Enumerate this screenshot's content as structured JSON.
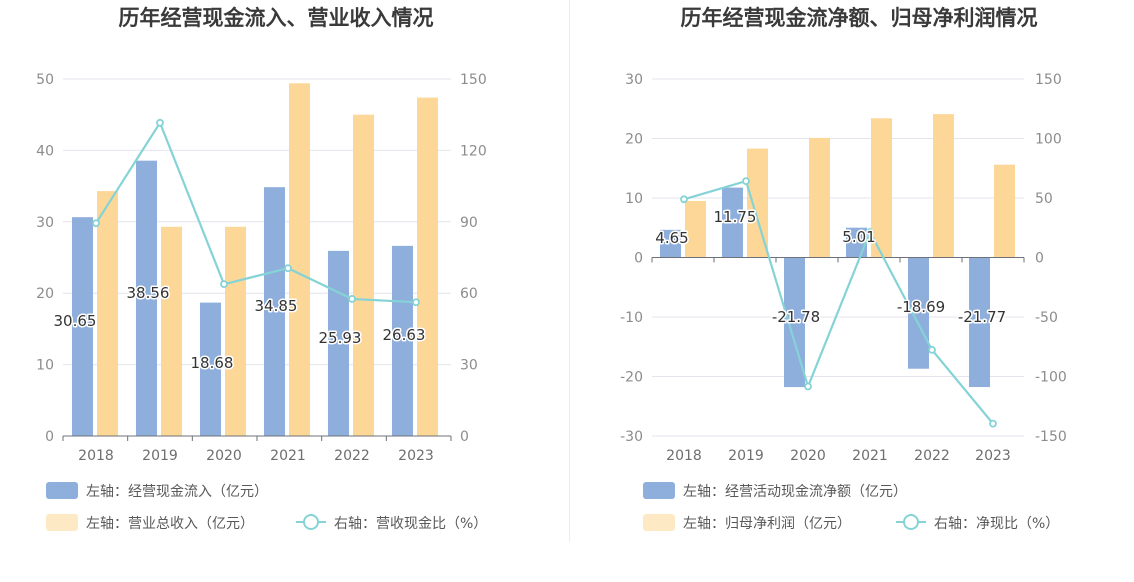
{
  "colors": {
    "bar_blue": "#8eaedc",
    "bar_orange": "#fdd797",
    "line_teal": "#85d3d6",
    "grid": "#e4e4ee",
    "axis": "#6e7079"
  },
  "chart_data": [
    {
      "type": "bar",
      "title": "历年经营现金流入、营业收入情况",
      "categories": [
        "2018",
        "2019",
        "2020",
        "2021",
        "2022",
        "2023"
      ],
      "left_axis": {
        "min": 0,
        "max": 50,
        "ticks": [
          "0",
          "10",
          "20",
          "30",
          "40",
          "50"
        ]
      },
      "right_axis": {
        "min": 0,
        "max": 150,
        "ticks": [
          "0",
          "30",
          "60",
          "90",
          "120",
          "150"
        ]
      },
      "series": [
        {
          "name": "左轴：经营现金流入（亿元）",
          "type": "bar",
          "axis": "left",
          "values": [
            30.65,
            38.56,
            18.68,
            34.85,
            25.93,
            26.63
          ],
          "labels": [
            "30.65",
            "38.56",
            "18.68",
            "34.85",
            "25.93",
            "26.63"
          ]
        },
        {
          "name": "左轴：营业总收入（亿元）",
          "type": "bar",
          "axis": "left",
          "values": [
            34.3,
            29.3,
            29.3,
            49.4,
            45.0,
            47.4
          ]
        },
        {
          "name": "右轴：营收现金比（%）",
          "type": "line",
          "axis": "right",
          "values": [
            89.4,
            131.6,
            63.8,
            70.5,
            57.6,
            56.2
          ]
        }
      ]
    },
    {
      "type": "bar",
      "title": "历年经营现金流净额、归母净利润情况",
      "categories": [
        "2018",
        "2019",
        "2020",
        "2021",
        "2022",
        "2023"
      ],
      "left_axis": {
        "min": -30,
        "max": 30,
        "ticks": [
          "-30",
          "-20",
          "-10",
          "0",
          "10",
          "20",
          "30"
        ]
      },
      "right_axis": {
        "min": -150,
        "max": 150,
        "ticks": [
          "-150",
          "-100",
          "-50",
          "0",
          "50",
          "100",
          "150"
        ]
      },
      "series": [
        {
          "name": "左轴：经营活动现金流净额（亿元）",
          "type": "bar",
          "axis": "left",
          "values": [
            4.65,
            11.75,
            -21.78,
            5.01,
            -18.69,
            -21.77
          ],
          "labels": [
            "4.65",
            "11.75",
            "-21.78",
            "5.01",
            "-18.69",
            "-21.77"
          ]
        },
        {
          "name": "左轴：归母净利润（亿元）",
          "type": "bar",
          "axis": "left",
          "values": [
            9.5,
            18.3,
            20.1,
            23.4,
            24.1,
            15.6
          ]
        },
        {
          "name": "右轴：净现比（%）",
          "type": "line",
          "axis": "right",
          "values": [
            48.9,
            64.2,
            -108.4,
            21.4,
            -77.6,
            -139.6
          ]
        }
      ]
    }
  ]
}
